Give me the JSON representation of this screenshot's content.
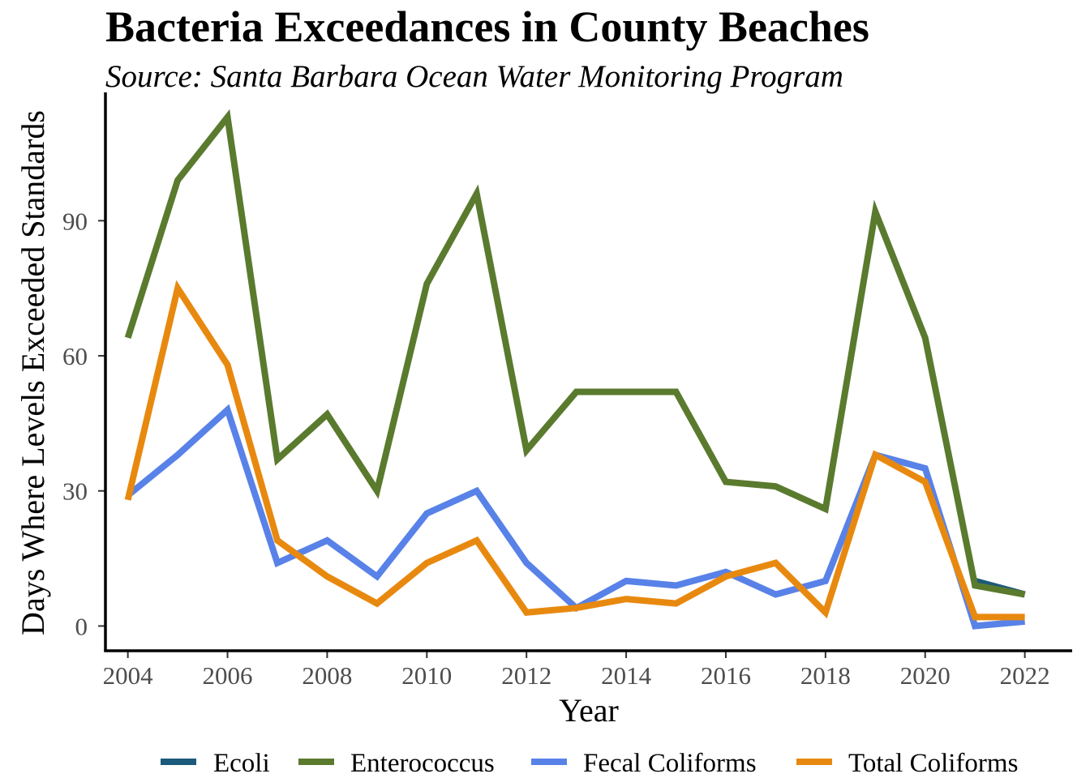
{
  "chart_data": {
    "type": "line",
    "title": "Bacteria Exceedances in County Beaches",
    "subtitle": "Source: Santa Barbara Ocean Water Monitoring Program",
    "xlabel": "Year",
    "ylabel": "Days Where Levels Exceeded Standards",
    "x": [
      2004,
      2005,
      2006,
      2007,
      2008,
      2009,
      2010,
      2011,
      2012,
      2013,
      2014,
      2015,
      2016,
      2017,
      2018,
      2019,
      2020,
      2021,
      2022
    ],
    "xticks": [
      "2004",
      "2006",
      "2008",
      "2010",
      "2012",
      "2014",
      "2016",
      "2018",
      "2020",
      "2022"
    ],
    "yticks": [
      "0",
      "30",
      "60",
      "90"
    ],
    "xlim": [
      2003.55,
      2022.95
    ],
    "ylim": [
      -5.5,
      118.5
    ],
    "grid": false,
    "legend_position": "bottom",
    "series": [
      {
        "name": "Ecoli",
        "color": "#1b5a7a",
        "values": [
          null,
          null,
          null,
          null,
          null,
          null,
          null,
          null,
          null,
          null,
          null,
          null,
          null,
          null,
          null,
          null,
          null,
          10,
          7
        ]
      },
      {
        "name": "Enterococcus",
        "color": "#5a7a2e",
        "values": [
          64,
          99,
          113,
          37,
          47,
          30,
          76,
          96,
          39,
          52,
          52,
          52,
          32,
          31,
          26,
          92,
          64,
          9,
          7
        ]
      },
      {
        "name": "Fecal Coliforms",
        "color": "#5882e8",
        "values": [
          29,
          38,
          48,
          14,
          19,
          11,
          25,
          30,
          14,
          4,
          10,
          9,
          12,
          7,
          10,
          38,
          35,
          0,
          1
        ]
      },
      {
        "name": "Total Coliforms",
        "color": "#e8890f",
        "values": [
          28,
          75,
          58,
          19,
          11,
          5,
          14,
          19,
          3,
          4,
          6,
          5,
          11,
          14,
          3,
          38,
          32,
          2,
          2
        ]
      }
    ]
  }
}
